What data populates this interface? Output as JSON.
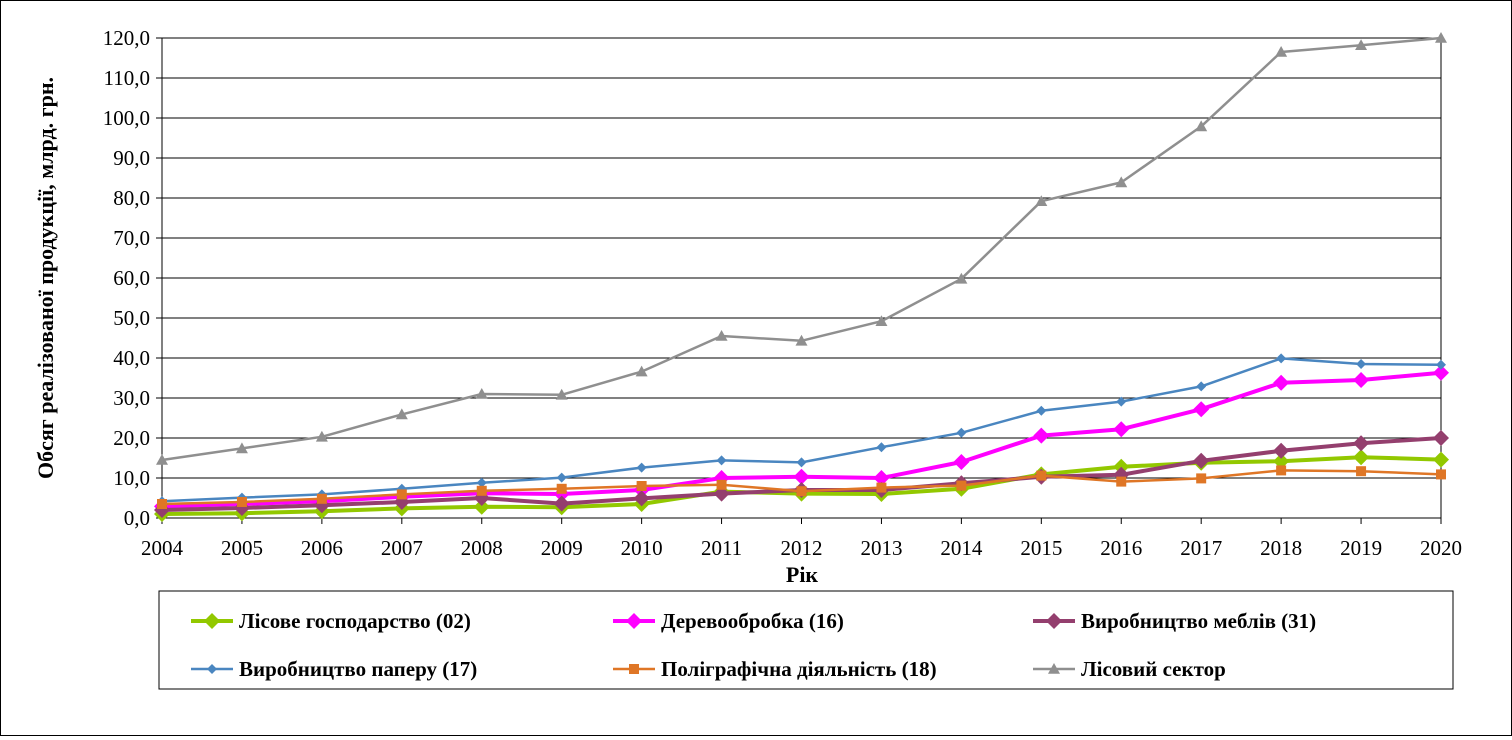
{
  "chart_data": {
    "type": "line",
    "title": "",
    "xlabel": "Рік",
    "ylabel": "Обсяг реалізованої продукції, млрд. грн.",
    "x": [
      "2004",
      "2005",
      "2006",
      "2007",
      "2008",
      "2009",
      "2010",
      "2011",
      "2012",
      "2013",
      "2014",
      "2015",
      "2016",
      "2017",
      "2018",
      "2019",
      "2020"
    ],
    "ylim": [
      0,
      120
    ],
    "yticks": [
      0,
      10,
      20,
      30,
      40,
      50,
      60,
      70,
      80,
      90,
      100,
      110,
      120
    ],
    "ytick_labels": [
      "0,0",
      "10,0",
      "20,0",
      "30,0",
      "40,0",
      "50,0",
      "60,0",
      "70,0",
      "80,0",
      "90,0",
      "100,0",
      "110,0",
      "120,0"
    ],
    "grid": "horizontal",
    "legend_position": "bottom",
    "series": [
      {
        "name": "Лісове господарство  (02)",
        "color": "#92C800",
        "marker": "diamond",
        "width": 4,
        "values": [
          1.0,
          1.2,
          1.7,
          2.4,
          2.8,
          2.7,
          3.5,
          6.6,
          6.1,
          6.0,
          7.3,
          10.9,
          12.8,
          13.8,
          14.2,
          15.2,
          14.6
        ]
      },
      {
        "name": "Деревообробка  (16)",
        "color": "#FF00FF",
        "marker": "diamond",
        "width": 4,
        "values": [
          2.9,
          3.5,
          4.2,
          5.3,
          6.2,
          6.0,
          7.0,
          10.0,
          10.3,
          10.0,
          14.0,
          20.6,
          22.2,
          27.2,
          33.8,
          34.5,
          36.3
        ]
      },
      {
        "name": "Виробництво  меблів (31)",
        "color": "#943F6E",
        "marker": "diamond",
        "width": 4,
        "values": [
          2.0,
          2.5,
          3.2,
          4.0,
          5.0,
          3.6,
          4.9,
          6.1,
          7.0,
          7.0,
          8.7,
          10.3,
          10.8,
          14.3,
          16.8,
          18.7,
          20.0
        ]
      },
      {
        "name": "Виробництво  паперу (17)",
        "color": "#4A86C0",
        "marker": "diamond-small",
        "width": 2.5,
        "values": [
          4.2,
          5.1,
          5.9,
          7.3,
          8.8,
          10.1,
          12.6,
          14.4,
          13.9,
          17.7,
          21.3,
          26.8,
          29.1,
          32.9,
          39.9,
          38.5,
          38.3
        ]
      },
      {
        "name": "Поліграфічна  діяльність (18)",
        "color": "#DF7626",
        "marker": "square",
        "width": 2.5,
        "values": [
          3.5,
          4.0,
          4.8,
          5.9,
          6.8,
          7.3,
          8.0,
          8.3,
          6.7,
          7.6,
          8.1,
          10.6,
          9.1,
          9.9,
          11.9,
          11.7,
          10.9
        ]
      },
      {
        "name": "Лісовий сектор",
        "color": "#8F8F8F",
        "marker": "triangle",
        "width": 2.5,
        "values": [
          14.5,
          17.4,
          20.3,
          25.9,
          31.0,
          30.8,
          36.6,
          45.5,
          44.3,
          49.2,
          59.8,
          79.2,
          83.9,
          97.9,
          116.5,
          118.2,
          120.0
        ]
      }
    ]
  }
}
